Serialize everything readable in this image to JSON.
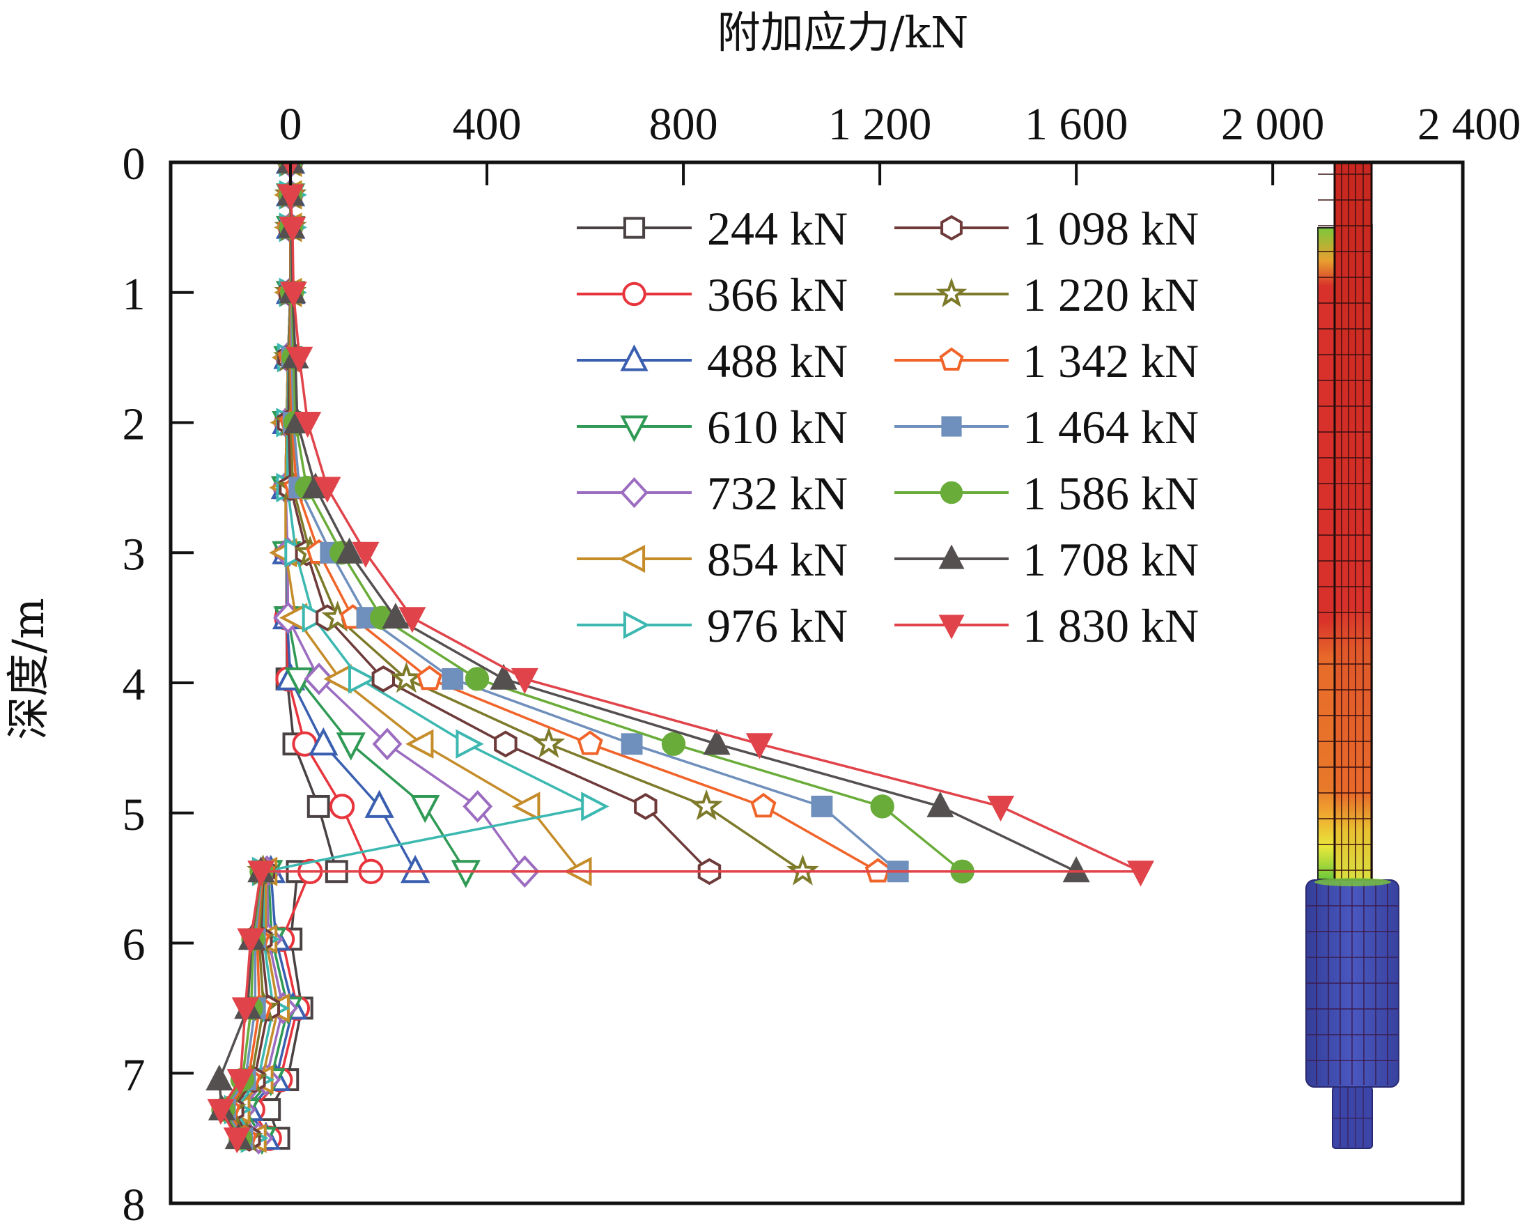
{
  "chart_data": {
    "type": "line",
    "title": "",
    "xlabel": "附加应力/kN",
    "ylabel": "深度/m",
    "xlim": [
      -244,
      2387
    ],
    "ylim": [
      0,
      8
    ],
    "x_axis_position": "top",
    "y_axis_inverted": true,
    "grid": false,
    "legend_position": "top-center",
    "xticks": [
      0,
      400,
      800,
      1200,
      1600,
      2000,
      2400
    ],
    "xtick_labels": [
      "0",
      "400",
      "800",
      "1 200",
      "1 600",
      "2 000",
      "2 400"
    ],
    "yticks": [
      0,
      1,
      2,
      3,
      4,
      5,
      6,
      7,
      8
    ],
    "ytick_labels": [
      "0",
      "1",
      "2",
      "3",
      "4",
      "5",
      "6",
      "7",
      "8"
    ],
    "depths": [
      0,
      0.25,
      0.5,
      1.0,
      1.5,
      2.0,
      2.5,
      3.0,
      3.5,
      3.97,
      4.47,
      4.95,
      5.45,
      5.45,
      5.97,
      6.5,
      7.05,
      7.28,
      7.5
    ],
    "series": [
      {
        "name": "244 kN",
        "color": "#4a4242",
        "marker": "square-open",
        "values": [
          0,
          0,
          0,
          0,
          -5,
          -8,
          -10,
          -8,
          -8,
          -7,
          7,
          57,
          94,
          14,
          1,
          23,
          -6,
          -43,
          -24
        ]
      },
      {
        "name": "366 kN",
        "color": "#e8343c",
        "marker": "circle-open",
        "values": [
          0,
          0,
          0,
          0,
          -5,
          -8,
          -10,
          -8,
          -8,
          -5,
          29,
          105,
          164,
          40,
          -17,
          14,
          -21,
          -77,
          -43
        ]
      },
      {
        "name": "488 kN",
        "color": "#3a5fb0",
        "marker": "triangle-up-open",
        "values": [
          0,
          0,
          0,
          0,
          -5,
          -8,
          -10,
          -8,
          -7,
          0,
          67,
          181,
          254,
          -40,
          -30,
          5,
          -30,
          -85,
          -50
        ]
      },
      {
        "name": "610 kN",
        "color": "#2f9a55",
        "marker": "triangle-down-open",
        "values": [
          0,
          0,
          0,
          0,
          -5,
          -8,
          -10,
          -8,
          -5,
          18,
          123,
          274,
          357,
          -45,
          -38,
          -5,
          -40,
          -92,
          -58
        ]
      },
      {
        "name": "732 kN",
        "color": "#9b6cc0",
        "marker": "diamond-open",
        "values": [
          0,
          0,
          0,
          0,
          -5,
          -8,
          -10,
          -6,
          -5,
          58,
          197,
          381,
          477,
          -48,
          -45,
          -15,
          -50,
          -100,
          -65
        ]
      },
      {
        "name": "854 kN",
        "color": "#c58c2a",
        "marker": "triangle-left-open",
        "values": [
          0,
          0,
          0,
          0,
          -5,
          -8,
          -10,
          -10,
          11,
          101,
          268,
          485,
          590,
          -50,
          -50,
          -25,
          -58,
          -105,
          -72
        ]
      },
      {
        "name": "976 kN",
        "color": "#3cb8b0",
        "marker": "triangle-right-open",
        "values": [
          0,
          0,
          0,
          0,
          -4,
          -6,
          -6,
          11,
          47,
          141,
          360,
          615,
          null,
          -55,
          -55,
          -35,
          -66,
          -112,
          -78
        ]
      },
      {
        "name": "1 098 kN",
        "color": "#6e3a3a",
        "marker": "hexagon-open",
        "values": [
          0,
          0,
          0,
          0,
          -3,
          -4,
          0,
          33,
          75,
          189,
          438,
          723,
          853,
          -55,
          -60,
          -45,
          -74,
          -118,
          -84
        ]
      },
      {
        "name": "1 220 kN",
        "color": "#7d7a2a",
        "marker": "star-open",
        "values": [
          0,
          0,
          0,
          0,
          -2,
          0,
          5,
          40,
          96,
          236,
          526,
          847,
          1043,
          -56,
          -64,
          -55,
          -80,
          -123,
          -89
        ]
      },
      {
        "name": "1 342 kN",
        "color": "#f0642a",
        "marker": "pentagon-open",
        "values": [
          0,
          0,
          0,
          1,
          0,
          3,
          12,
          58,
          127,
          283,
          610,
          963,
          1196,
          -57,
          -68,
          -63,
          -86,
          -128,
          -94
        ]
      },
      {
        "name": "1 464 kN",
        "color": "#6f8fbc",
        "marker": "square-filled",
        "values": [
          0,
          0,
          1,
          2,
          3,
          6,
          18,
          82,
          156,
          330,
          695,
          1082,
          1237,
          -58,
          -72,
          -72,
          -92,
          -133,
          -98
        ]
      },
      {
        "name": "1 586 kN",
        "color": "#6aac3a",
        "marker": "circle-filled",
        "values": [
          0,
          0,
          1,
          3,
          6,
          10,
          33,
          104,
          186,
          380,
          780,
          1205,
          1368,
          -59,
          -76,
          -80,
          -98,
          -137,
          -102
        ]
      },
      {
        "name": "1 708 kN",
        "color": "#555050",
        "marker": "triangle-up-filled",
        "values": [
          0,
          0,
          2,
          4,
          10,
          14,
          51,
          120,
          214,
          434,
          868,
          1323,
          1600,
          -60,
          -79,
          -87,
          -145,
          -140,
          -106
        ]
      },
      {
        "name": "1 830 kN",
        "color": "#e0444a",
        "marker": "triangle-down-filled",
        "values": [
          0,
          0,
          4,
          6,
          18,
          35,
          75,
          153,
          248,
          477,
          955,
          1446,
          1731,
          -60,
          -81,
          -92,
          -102,
          -142,
          -109
        ]
      }
    ],
    "inset_image": {
      "description": "pile finite element model",
      "colors": {
        "shaft": "#d8302a",
        "shaft_dark": "#a8221e",
        "sleeve_mid": "#e86a2a",
        "sleeve_low": "#f0a030",
        "sleeve_green": "#7cc83a",
        "sleeve_yellow": "#e8e83a",
        "cap": "#3c46a8",
        "cap_light": "#4a5cc0",
        "mesh": "#3a1010"
      }
    }
  }
}
